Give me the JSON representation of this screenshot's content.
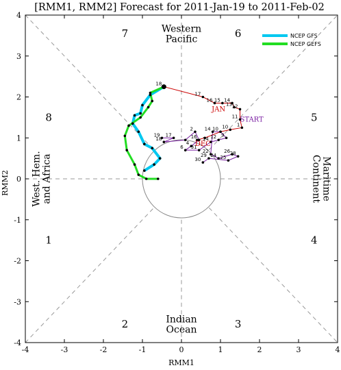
{
  "chart_data": {
    "type": "line",
    "title": "[RMM1, RMM2] Forecast for 2011-Jan-19 to 2011-Feb-02",
    "xlabel": "RMM1",
    "ylabel": "RMM2",
    "xlim": [
      -4,
      4
    ],
    "ylim": [
      -4,
      4
    ],
    "x_ticks": [
      "-4",
      "-3",
      "-2",
      "-1",
      "0",
      "1",
      "2",
      "3",
      "4"
    ],
    "y_ticks": [
      "-4",
      "-3",
      "-2",
      "-1",
      "0",
      "1",
      "2",
      "3",
      "4"
    ],
    "phase_numbers": [
      {
        "label": "1",
        "x": -3.4,
        "y": -1.5
      },
      {
        "label": "2",
        "x": -1.45,
        "y": -3.55
      },
      {
        "label": "3",
        "x": 1.45,
        "y": -3.55
      },
      {
        "label": "4",
        "x": 3.4,
        "y": -1.5
      },
      {
        "label": "5",
        "x": 3.4,
        "y": 1.5
      },
      {
        "label": "6",
        "x": 1.45,
        "y": 3.55
      },
      {
        "label": "7",
        "x": -1.45,
        "y": 3.55
      },
      {
        "label": "8",
        "x": -3.4,
        "y": 1.5
      }
    ],
    "regions": [
      {
        "lines": [
          "Western",
          "Pacific"
        ],
        "x": 0,
        "y": 3.55,
        "rotate": 0
      },
      {
        "lines": [
          "Indian",
          "Ocean"
        ],
        "x": 0,
        "y": -3.55,
        "rotate": 0
      },
      {
        "lines": [
          "West. Hem.",
          "and Africa"
        ],
        "x": -3.6,
        "y": 0,
        "rotate": -90
      },
      {
        "lines": [
          "Maritime",
          "Continent"
        ],
        "x": 3.6,
        "y": 0,
        "rotate": 90
      }
    ],
    "legend": [
      {
        "name": "NCEP GFS",
        "color": "#00c8f0"
      },
      {
        "name": "NCEP GEFS",
        "color": "#22dd22"
      }
    ],
    "month_labels": [
      {
        "text": "DEC",
        "x": 0.55,
        "y": 0.8,
        "color": "#cc0000"
      },
      {
        "text": "JAN",
        "x": 0.95,
        "y": 1.65,
        "color": "#cc0000"
      },
      {
        "text": "START",
        "x": 1.8,
        "y": 1.4,
        "color": "#7a1fa2"
      }
    ],
    "series": [
      {
        "name": "observed-dec",
        "color": "#7a1fa2",
        "points": [
          {
            "x": -0.5,
            "y": 1.0,
            "label": "19"
          },
          {
            "x": -0.2,
            "y": 1.0,
            "label": "17"
          },
          {
            "x": -0.45,
            "y": 0.9,
            "label": "18"
          },
          {
            "x": 0.1,
            "y": 0.95
          },
          {
            "x": 0.35,
            "y": 1.15,
            "label": "2"
          },
          {
            "x": 0.45,
            "y": 0.95,
            "label": "16"
          },
          {
            "x": 0.25,
            "y": 0.8,
            "label": "4"
          },
          {
            "x": 0.1,
            "y": 0.7,
            "label": "6"
          },
          {
            "x": 0.45,
            "y": 0.7,
            "label": "31"
          },
          {
            "x": 0.75,
            "y": 0.9,
            "label": "14"
          },
          {
            "x": 0.95,
            "y": 0.95,
            "label": "12"
          },
          {
            "x": 1.15,
            "y": 1.0,
            "label": "9"
          },
          {
            "x": 1.0,
            "y": 1.15,
            "label": "10"
          },
          {
            "x": 0.8,
            "y": 1.15,
            "label": "14"
          },
          {
            "x": 0.75,
            "y": 0.6,
            "label": "22"
          },
          {
            "x": 0.95,
            "y": 0.5,
            "label": "24"
          },
          {
            "x": 1.3,
            "y": 0.6,
            "label": "26"
          },
          {
            "x": 1.45,
            "y": 0.55,
            "label": "28"
          },
          {
            "x": 1.2,
            "y": 0.45,
            "label": "25"
          },
          {
            "x": 0.7,
            "y": 0.5,
            "label": "29"
          },
          {
            "x": 0.55,
            "y": 0.4,
            "label": "30"
          }
        ]
      },
      {
        "name": "observed-jan",
        "color": "#cc0000",
        "points": [
          {
            "x": -0.45,
            "y": 2.25,
            "label": "18"
          },
          {
            "x": 0.55,
            "y": 2.0,
            "label": "17"
          },
          {
            "x": 0.85,
            "y": 1.85,
            "label": "16"
          },
          {
            "x": 1.05,
            "y": 1.85,
            "label": "15"
          },
          {
            "x": 1.3,
            "y": 1.85,
            "label": "14"
          },
          {
            "x": 1.35,
            "y": 1.75,
            "label": "13"
          },
          {
            "x": 1.5,
            "y": 1.7,
            "label": "12"
          },
          {
            "x": 1.5,
            "y": 1.45,
            "label": "11"
          },
          {
            "x": 1.55,
            "y": 1.25,
            "label": "1"
          },
          {
            "x": 1.25,
            "y": 1.2,
            "label": "10"
          },
          {
            "x": 1.0,
            "y": 1.15
          },
          {
            "x": 0.6,
            "y": 1.0
          },
          {
            "x": 0.4,
            "y": 0.95
          }
        ]
      },
      {
        "name": "NCEP GFS",
        "color": "#00c8f0",
        "points": [
          {
            "x": -0.45,
            "y": 2.25
          },
          {
            "x": -0.8,
            "y": 2.05
          },
          {
            "x": -1.0,
            "y": 1.8
          },
          {
            "x": -1.05,
            "y": 1.6
          },
          {
            "x": -1.2,
            "y": 1.55
          },
          {
            "x": -1.25,
            "y": 1.35
          },
          {
            "x": -1.1,
            "y": 1.15
          },
          {
            "x": -0.95,
            "y": 0.85
          },
          {
            "x": -0.75,
            "y": 0.75
          },
          {
            "x": -0.55,
            "y": 0.5
          },
          {
            "x": -0.7,
            "y": 0.35
          },
          {
            "x": -0.95,
            "y": 0.2
          }
        ]
      },
      {
        "name": "NCEP GEFS",
        "color": "#22dd22",
        "points": [
          {
            "x": -0.45,
            "y": 2.25
          },
          {
            "x": -0.8,
            "y": 2.1
          },
          {
            "x": -0.75,
            "y": 1.9
          },
          {
            "x": -0.85,
            "y": 1.75
          },
          {
            "x": -1.05,
            "y": 1.5
          },
          {
            "x": -1.35,
            "y": 1.3
          },
          {
            "x": -1.45,
            "y": 1.05
          },
          {
            "x": -1.4,
            "y": 0.7
          },
          {
            "x": -1.2,
            "y": 0.35
          },
          {
            "x": -1.1,
            "y": 0.1
          },
          {
            "x": -0.9,
            "y": 0.0
          },
          {
            "x": -0.6,
            "y": 0.0
          }
        ]
      }
    ]
  }
}
